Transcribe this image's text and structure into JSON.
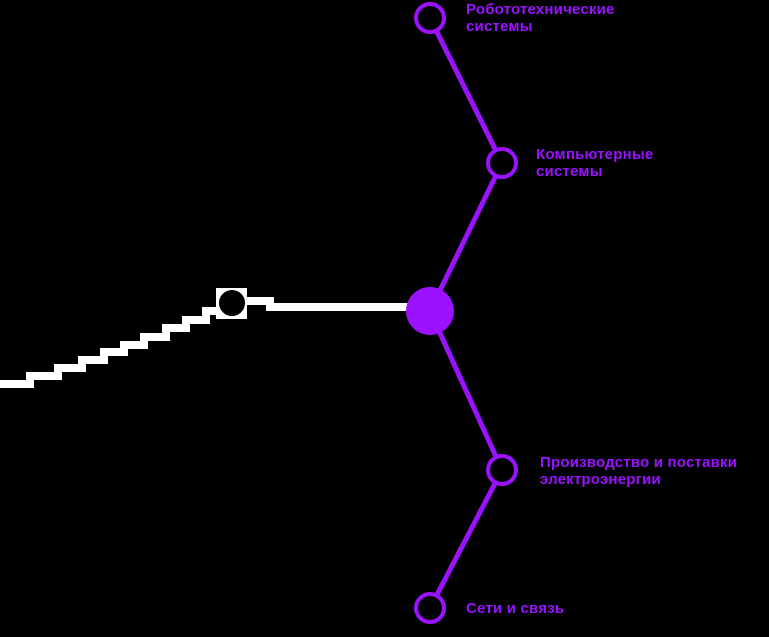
{
  "center": {
    "title": ""
  },
  "branches": [
    {
      "label": "Робототехнические системы"
    },
    {
      "label": "Компьютерные системы"
    },
    {
      "label": "Производство и поставки электроэнергии"
    },
    {
      "label": "Сети и связь"
    }
  ],
  "colors": {
    "background": "#000000",
    "accent": "#9a12ff",
    "connector": "#ffffff",
    "center_text": "#ffffff"
  }
}
